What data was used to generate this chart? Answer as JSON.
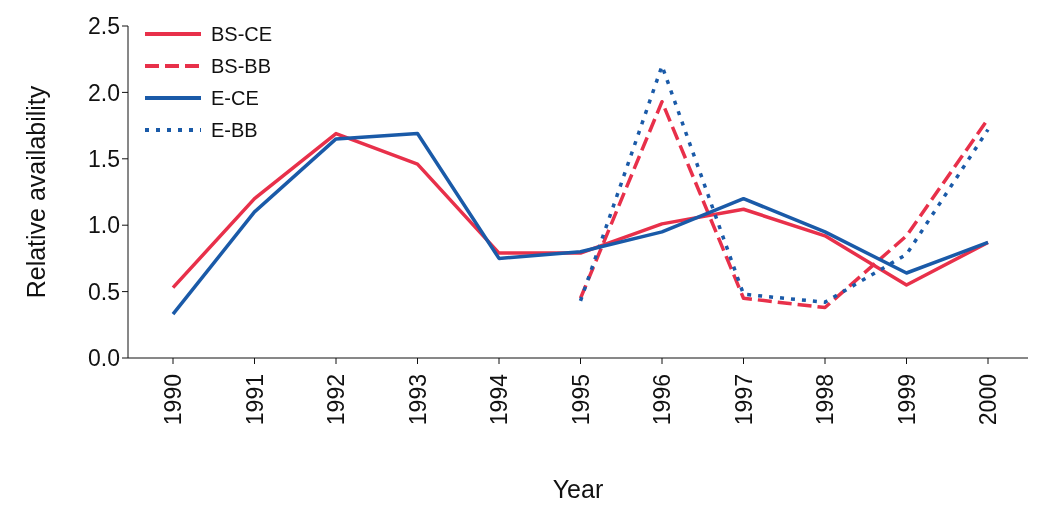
{
  "chart_data": {
    "type": "line",
    "xlabel": "Year",
    "ylabel": "Relative availability",
    "categories": [
      "1990",
      "1991",
      "1992",
      "1993",
      "1994",
      "1995",
      "1996",
      "1997",
      "1998",
      "1999",
      "2000"
    ],
    "ylim": [
      0,
      2.5
    ],
    "yticks": [
      {
        "value": 0,
        "label": "0.0"
      },
      {
        "value": 0.5,
        "label": "0.5"
      },
      {
        "value": 1,
        "label": "1.0"
      },
      {
        "value": 1.5,
        "label": "1.5"
      },
      {
        "value": 2,
        "label": "2.0"
      },
      {
        "value": 2.5,
        "label": "2.5"
      }
    ],
    "grid": false,
    "legend": "top left",
    "marker": "none",
    "series": [
      {
        "name": "BS-CE",
        "color": "#e8304a",
        "line_style": "solid",
        "values": [
          0.53,
          1.2,
          1.69,
          1.46,
          0.79,
          0.79,
          1.01,
          1.12,
          0.92,
          0.55,
          0.87
        ]
      },
      {
        "name": "BS-BB",
        "color": "#e8304a",
        "line_style": "dashed",
        "values": [
          null,
          null,
          null,
          null,
          null,
          0.45,
          1.93,
          0.45,
          0.38,
          0.92,
          1.8
        ]
      },
      {
        "name": "E-CE",
        "color": "#1a5aa8",
        "line_style": "solid",
        "values": [
          0.33,
          1.1,
          1.65,
          1.69,
          0.75,
          0.8,
          0.95,
          1.2,
          0.95,
          0.64,
          0.87
        ]
      },
      {
        "name": "E-BB",
        "color": "#1a5aa8",
        "line_style": "dotted",
        "values": [
          null,
          null,
          null,
          null,
          null,
          0.43,
          2.2,
          0.48,
          0.42,
          0.78,
          1.72
        ]
      }
    ]
  }
}
